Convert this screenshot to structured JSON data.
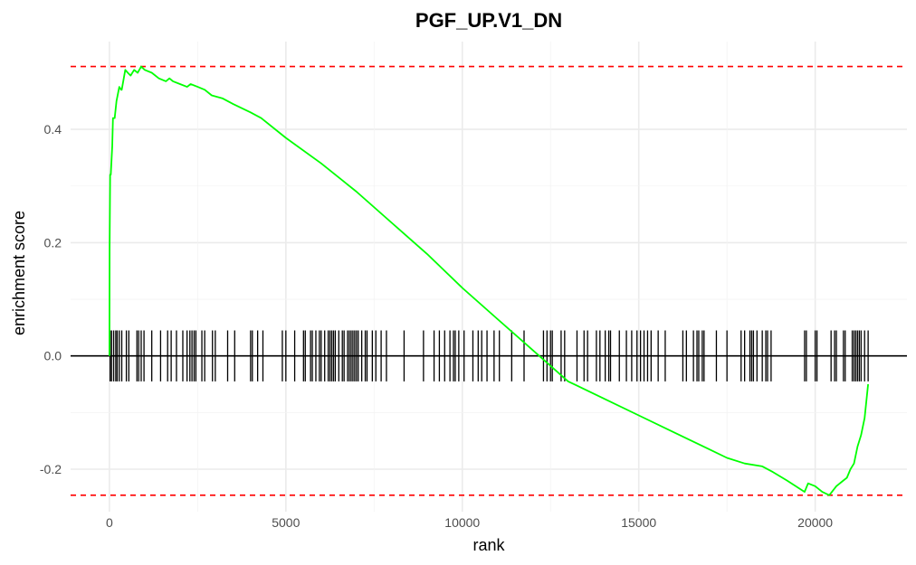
{
  "chart_data": {
    "type": "line",
    "title": "PGF_UP.V1_DN",
    "xlabel": "rank",
    "ylabel": "enrichment score",
    "xlim": [
      -1100,
      22600
    ],
    "ylim": [
      -0.275,
      0.555
    ],
    "x_ticks": [
      0,
      5000,
      10000,
      15000,
      20000
    ],
    "x_tick_labels": [
      "0",
      "5000",
      "10000",
      "15000",
      "20000"
    ],
    "y_ticks": [
      -0.2,
      0.0,
      0.2,
      0.4
    ],
    "y_tick_labels": [
      "-0.2",
      "0.0",
      "0.2",
      "0.4"
    ],
    "grid": true,
    "colors": {
      "curve": "#00ff00",
      "dashed": "#ff0000",
      "hits": "#000000",
      "grid": "#ebebeb"
    },
    "max_es": 0.511,
    "min_es": -0.246,
    "hit_band": [
      -0.045,
      0.045
    ],
    "running_score": {
      "x": [
        0,
        5,
        20,
        40,
        80,
        100,
        150,
        200,
        280,
        330,
        350,
        450,
        520,
        600,
        700,
        800,
        900,
        1000,
        1200,
        1400,
        1600,
        1700,
        1800,
        2000,
        2200,
        2300,
        2500,
        2700,
        2900,
        3200,
        3500,
        4000,
        4300,
        5000,
        6000,
        7000,
        8000,
        9000,
        10000,
        11000,
        12000,
        13000,
        14000,
        15000,
        16000,
        17000,
        17500,
        18000,
        18500,
        18800,
        19200,
        19700,
        19800,
        20000,
        20200,
        20400,
        20600,
        20800,
        20900,
        21000,
        21100,
        21200,
        21300,
        21400,
        21500
      ],
      "y": [
        0.0,
        0.19,
        0.32,
        0.32,
        0.37,
        0.42,
        0.42,
        0.45,
        0.475,
        0.47,
        0.47,
        0.505,
        0.5,
        0.495,
        0.505,
        0.5,
        0.511,
        0.505,
        0.5,
        0.49,
        0.485,
        0.49,
        0.485,
        0.48,
        0.475,
        0.48,
        0.475,
        0.47,
        0.46,
        0.455,
        0.445,
        0.43,
        0.42,
        0.385,
        0.34,
        0.29,
        0.235,
        0.18,
        0.12,
        0.065,
        0.01,
        -0.045,
        -0.075,
        -0.105,
        -0.135,
        -0.165,
        -0.18,
        -0.19,
        -0.195,
        -0.205,
        -0.22,
        -0.24,
        -0.225,
        -0.23,
        -0.24,
        -0.246,
        -0.23,
        -0.22,
        -0.215,
        -0.2,
        -0.19,
        -0.16,
        -0.14,
        -0.11,
        -0.05
      ]
    },
    "hits": [
      20,
      60,
      120,
      180,
      220,
      280,
      350,
      480,
      550,
      780,
      830,
      900,
      980,
      1200,
      1450,
      1650,
      1750,
      1900,
      2080,
      2200,
      2280,
      2340,
      2400,
      2450,
      2620,
      2700,
      2920,
      3000,
      3350,
      3550,
      4000,
      4050,
      4200,
      4350,
      4900,
      5000,
      5250,
      5500,
      5550,
      5700,
      5750,
      5850,
      5950,
      6000,
      6100,
      6200,
      6250,
      6300,
      6350,
      6400,
      6500,
      6600,
      6650,
      6750,
      6800,
      6850,
      6900,
      6950,
      7000,
      7050,
      7150,
      7250,
      7300,
      7450,
      7550,
      7700,
      7850,
      8350,
      8900,
      9200,
      9350,
      9500,
      9650,
      9750,
      9800,
      9900,
      10050,
      10300,
      10450,
      10550,
      10700,
      10900,
      11050,
      11400,
      11750,
      12300,
      12400,
      12500,
      12550,
      12800,
      12900,
      13250,
      13450,
      13550,
      13800,
      13900,
      14050,
      14150,
      14200,
      14450,
      14650,
      14800,
      14950,
      15050,
      15150,
      15250,
      15350,
      15550,
      15750,
      16250,
      16350,
      16550,
      16650,
      16700,
      16800,
      16850,
      17200,
      17500,
      17900,
      18000,
      18150,
      18200,
      18250,
      18350,
      18500,
      18600,
      18650,
      18750,
      19700,
      19750,
      20000,
      20050,
      20450,
      20550,
      20600,
      20800,
      20850,
      21050,
      21100,
      21150,
      21200,
      21250,
      21300,
      21400,
      21500
    ]
  }
}
